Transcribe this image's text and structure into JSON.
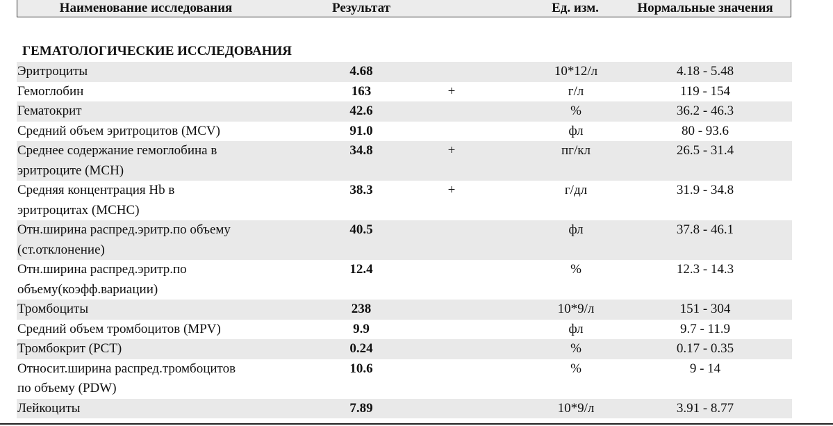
{
  "table": {
    "columns": [
      "Наименование исследования",
      "Результат",
      "Ед. изм.",
      "Нормальные значения"
    ],
    "section": "ГЕМАТОЛОГИЧЕСКИЕ ИССЛЕДОВАНИЯ",
    "rows": [
      {
        "name": [
          "Эритроциты"
        ],
        "result": "4.68",
        "unit": "10*12/л",
        "normal": "4.18 - 5.48"
      },
      {
        "name": [
          "Гемоглобин"
        ],
        "result": "163",
        "flag": "+",
        "unit": "г/л",
        "normal": "119 - 154"
      },
      {
        "name": [
          "Гематокрит"
        ],
        "result": "42.6",
        "unit": "%",
        "normal": "36.2 - 46.3"
      },
      {
        "name": [
          "Средний объем эритроцитов (MCV)"
        ],
        "result": "91.0",
        "unit": "фл",
        "normal": "80 - 93.6"
      },
      {
        "name": [
          "Среднее содержание гемоглобина в",
          "эритроците (MCH)"
        ],
        "result": "34.8",
        "flag": "+",
        "unit": "пг/кл",
        "normal": "26.5 - 31.4"
      },
      {
        "name": [
          "Средняя концентрация Hb в",
          "эритроцитах (MCHC)"
        ],
        "result": "38.3",
        "flag": "+",
        "unit": "г/дл",
        "normal": "31.9 - 34.8"
      },
      {
        "name": [
          "Отн.ширина распред.эритр.по объему",
          "(ст.отклонение)"
        ],
        "result": "40.5",
        "unit": "фл",
        "normal": "37.8 - 46.1"
      },
      {
        "name": [
          "Отн.ширина распред.эритр.по",
          "объему(коэфф.вариации)"
        ],
        "result": "12.4",
        "unit": "%",
        "normal": "12.3 - 14.3"
      },
      {
        "name": [
          "Тромбоциты"
        ],
        "result": "238",
        "unit": "10*9/л",
        "normal": "151 - 304"
      },
      {
        "name": [
          "Средний объем тромбоцитов (MPV)"
        ],
        "result": "9.9",
        "unit": "фл",
        "normal": "9.7 - 11.9"
      },
      {
        "name": [
          "Тромбокрит (PCT)"
        ],
        "result": "0.24",
        "unit": "%",
        "normal": "0.17 - 0.35"
      },
      {
        "name": [
          "Относит.ширина распред.тромбоцитов",
          "по объему (PDW)"
        ],
        "result": "10.6",
        "unit": "%",
        "normal": "9 - 14"
      },
      {
        "name": [
          "Лейкоциты"
        ],
        "result": "7.89",
        "unit": "10*9/л",
        "normal": "3.91 - 8.77"
      }
    ]
  }
}
